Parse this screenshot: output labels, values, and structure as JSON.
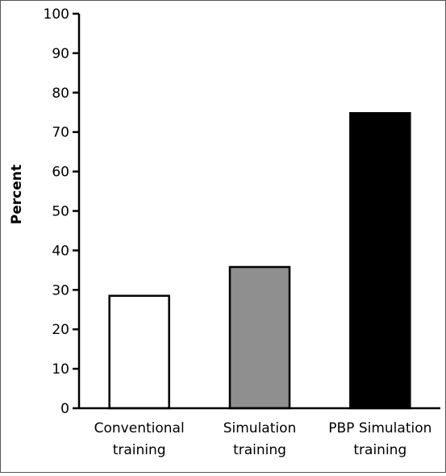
{
  "chart_data": {
    "type": "bar",
    "categories": [
      [
        "Conventional",
        "training"
      ],
      [
        "Simulation",
        "training"
      ],
      [
        "PBP Simulation",
        "training"
      ]
    ],
    "values": [
      28.5,
      35.8,
      74.8
    ],
    "bar_colors": [
      "#ffffff",
      "#8f8f8f",
      "#000000"
    ],
    "xlabel": "",
    "ylabel": "Percent",
    "ylim": [
      0,
      100
    ],
    "yticks": [
      0,
      10,
      20,
      30,
      40,
      50,
      60,
      70,
      80,
      90,
      100
    ],
    "grid": false
  }
}
